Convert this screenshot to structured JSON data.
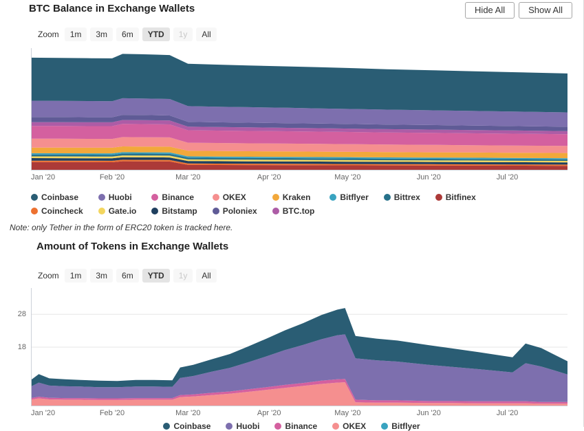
{
  "controls": {
    "hide_all": "Hide All",
    "show_all": "Show All",
    "zoom_label": "Zoom",
    "ranges": [
      "1m",
      "3m",
      "6m",
      "YTD",
      "1y",
      "All"
    ],
    "selected_range": "YTD"
  },
  "note": "Note: only Tether in the form of ERC20 token is tracked here.",
  "chart_data": [
    {
      "type": "area",
      "stacked": true,
      "title": "BTC Balance in Exchange Wallets",
      "xlabel": "",
      "ylabel": "",
      "ylim": [
        0,
        2800
      ],
      "yticks": [],
      "grid": false,
      "legend_position": "bottom-left",
      "x": [
        "2020-01-01",
        "2020-01-12",
        "2020-01-24",
        "2020-02-01",
        "2020-02-05",
        "2020-02-12",
        "2020-02-18",
        "2020-02-23",
        "2020-03-01",
        "2020-03-12",
        "2020-03-24",
        "2020-04-08",
        "2020-04-20",
        "2020-05-04",
        "2020-05-16",
        "2020-06-01",
        "2020-06-16",
        "2020-07-03",
        "2020-07-24"
      ],
      "x_ticks": [
        {
          "label": "Jan '20",
          "date": "2020-01-01"
        },
        {
          "label": "Feb '20",
          "date": "2020-02-01"
        },
        {
          "label": "Mar '20",
          "date": "2020-03-01"
        },
        {
          "label": "Apr '20",
          "date": "2020-04-01"
        },
        {
          "label": "May '20",
          "date": "2020-05-01"
        },
        {
          "label": "Jun '20",
          "date": "2020-06-01"
        },
        {
          "label": "Jul '20",
          "date": "2020-07-01"
        }
      ],
      "series": [
        {
          "name": "Bitfinex",
          "color": "#ac3a38",
          "values": [
            192,
            191,
            190,
            189,
            211,
            209,
            208,
            206,
            128,
            126,
            124,
            122,
            120,
            118,
            116,
            114,
            112,
            110,
            107
          ]
        },
        {
          "name": "Coincheck",
          "color": "#ed7130",
          "values": [
            33,
            33,
            33,
            33,
            34,
            34,
            34,
            34,
            32,
            32,
            31,
            31,
            31,
            30,
            30,
            30,
            30,
            29,
            29
          ]
        },
        {
          "name": "Bitstamp",
          "color": "#1f3f5f",
          "values": [
            58,
            58,
            57,
            57,
            58,
            58,
            58,
            58,
            55,
            54,
            54,
            53,
            53,
            52,
            52,
            51,
            51,
            50,
            50
          ]
        },
        {
          "name": "Gate.io",
          "color": "#f3d65f",
          "values": [
            40,
            40,
            40,
            40,
            41,
            41,
            41,
            41,
            39,
            38,
            38,
            38,
            37,
            37,
            36,
            36,
            36,
            35,
            35
          ]
        },
        {
          "name": "Bittrex",
          "color": "#26718a",
          "values": [
            42,
            42,
            42,
            42,
            43,
            43,
            43,
            43,
            40,
            40,
            39,
            39,
            38,
            38,
            37,
            37,
            36,
            36,
            35
          ]
        },
        {
          "name": "Bitflyer",
          "color": "#39a3c0",
          "values": [
            30,
            30,
            30,
            30,
            31,
            31,
            31,
            31,
            29,
            29,
            29,
            28,
            28,
            28,
            28,
            27,
            27,
            27,
            26
          ]
        },
        {
          "name": "Kraken",
          "color": "#f2a83b",
          "values": [
            128,
            128,
            128,
            129,
            132,
            132,
            132,
            131,
            128,
            127,
            126,
            125,
            124,
            123,
            122,
            121,
            120,
            119,
            118
          ]
        },
        {
          "name": "OKEX",
          "color": "#f58f8f",
          "values": [
            205,
            204,
            203,
            202,
            215,
            214,
            213,
            212,
            185,
            183,
            181,
            179,
            177,
            175,
            172,
            170,
            167,
            165,
            162
          ]
        },
        {
          "name": "Binance",
          "color": "#d4609f",
          "values": [
            290,
            291,
            292,
            293,
            300,
            300,
            299,
            298,
            285,
            284,
            283,
            281,
            280,
            278,
            276,
            274,
            272,
            270,
            267
          ]
        },
        {
          "name": "BTC.top",
          "color": "#ad5ca6",
          "values": [
            88,
            88,
            87,
            87,
            90,
            90,
            89,
            89,
            82,
            81,
            81,
            80,
            79,
            78,
            77,
            76,
            75,
            74,
            72
          ]
        },
        {
          "name": "Poloniex",
          "color": "#5f5b96",
          "values": [
            118,
            117,
            116,
            115,
            118,
            118,
            117,
            116,
            110,
            109,
            108,
            107,
            106,
            105,
            104,
            103,
            102,
            101,
            99
          ]
        },
        {
          "name": "Huobi",
          "color": "#7d6fae",
          "values": [
            372,
            371,
            370,
            369,
            380,
            379,
            378,
            377,
            360,
            357,
            354,
            351,
            348,
            345,
            342,
            339,
            336,
            333,
            329
          ]
        },
        {
          "name": "Coinbase",
          "color": "#2a5d74",
          "values": [
            985,
            983,
            981,
            979,
            1015,
            1011,
            1008,
            1005,
            968,
            962,
            956,
            948,
            941,
            933,
            925,
            917,
            909,
            901,
            890
          ]
        }
      ],
      "legend": [
        {
          "label": "Coinbase",
          "color": "#2a5d74"
        },
        {
          "label": "Huobi",
          "color": "#7d6fae"
        },
        {
          "label": "Binance",
          "color": "#d4609f"
        },
        {
          "label": "OKEX",
          "color": "#f58f8f"
        },
        {
          "label": "Kraken",
          "color": "#f2a83b"
        },
        {
          "label": "Bitflyer",
          "color": "#39a3c0"
        },
        {
          "label": "Bittrex",
          "color": "#26718a"
        },
        {
          "label": "Bitfinex",
          "color": "#ac3a38"
        },
        {
          "label": "Coincheck",
          "color": "#ed7130"
        },
        {
          "label": "Gate.io",
          "color": "#f3d65f"
        },
        {
          "label": "Bitstamp",
          "color": "#1f3f5f"
        },
        {
          "label": "Poloniex",
          "color": "#5f5b96"
        },
        {
          "label": "BTC.top",
          "color": "#ad5ca6"
        }
      ]
    },
    {
      "type": "area",
      "stacked": true,
      "title": "Amount of Tokens in Exchange Wallets",
      "xlabel": "",
      "ylabel": "",
      "ylim": [
        0,
        36
      ],
      "yticks": [
        18,
        28
      ],
      "grid": true,
      "legend_position": "bottom-center",
      "x": [
        "2020-01-01",
        "2020-01-04",
        "2020-01-08",
        "2020-01-14",
        "2020-01-20",
        "2020-01-27",
        "2020-02-03",
        "2020-02-10",
        "2020-02-17",
        "2020-02-24",
        "2020-02-27",
        "2020-03-03",
        "2020-03-10",
        "2020-03-17",
        "2020-03-24",
        "2020-03-31",
        "2020-04-07",
        "2020-04-14",
        "2020-04-21",
        "2020-04-27",
        "2020-04-30",
        "2020-05-04",
        "2020-05-12",
        "2020-05-20",
        "2020-06-01",
        "2020-06-10",
        "2020-06-20",
        "2020-06-28",
        "2020-07-03",
        "2020-07-08",
        "2020-07-14",
        "2020-07-19",
        "2020-07-24"
      ],
      "x_ticks": [
        {
          "label": "Jan '20",
          "date": "2020-01-01"
        },
        {
          "label": "Feb '20",
          "date": "2020-02-01"
        },
        {
          "label": "Mar '20",
          "date": "2020-03-01"
        },
        {
          "label": "Apr '20",
          "date": "2020-04-01"
        },
        {
          "label": "May '20",
          "date": "2020-05-01"
        },
        {
          "label": "Jun '20",
          "date": "2020-06-01"
        },
        {
          "label": "Jul '20",
          "date": "2020-07-01"
        }
      ],
      "series": [
        {
          "name": "Bitflyer",
          "color": "#39a3c0",
          "values": [
            0.2,
            0.2,
            0.2,
            0.2,
            0.2,
            0.2,
            0.2,
            0.2,
            0.2,
            0.2,
            0.2,
            0.2,
            0.2,
            0.2,
            0.2,
            0.2,
            0.2,
            0.2,
            0.2,
            0.2,
            0.2,
            0.2,
            0.2,
            0.2,
            0.2,
            0.2,
            0.2,
            0.2,
            0.2,
            0.2,
            0.2,
            0.2,
            0.2
          ]
        },
        {
          "name": "OKEX",
          "color": "#f58f8f",
          "values": [
            1.8,
            2.2,
            1.9,
            1.8,
            1.8,
            1.7,
            1.7,
            1.8,
            1.8,
            1.8,
            2.6,
            2.8,
            3.2,
            3.6,
            4.2,
            4.8,
            5.4,
            6.0,
            6.6,
            7.0,
            7.1,
            1.0,
            0.9,
            0.9,
            0.8,
            0.8,
            0.7,
            0.7,
            0.7,
            0.7,
            0.6,
            0.6,
            0.6
          ]
        },
        {
          "name": "Binance",
          "color": "#d4609f",
          "values": [
            0.5,
            0.5,
            0.5,
            0.5,
            0.5,
            0.5,
            0.5,
            0.5,
            0.5,
            0.5,
            0.6,
            0.6,
            0.7,
            0.7,
            0.8,
            0.8,
            0.9,
            0.9,
            1.0,
            1.0,
            1.0,
            0.8,
            0.7,
            0.7,
            0.6,
            0.6,
            0.6,
            0.6,
            0.6,
            0.6,
            0.5,
            0.5,
            0.5
          ]
        },
        {
          "name": "Huobi",
          "color": "#7d6fae",
          "values": [
            3.5,
            4.3,
            3.7,
            3.6,
            3.5,
            3.4,
            3.4,
            3.5,
            3.5,
            3.4,
            5.2,
            5.6,
            6.4,
            7.2,
            8.2,
            9.4,
            10.6,
            11.6,
            12.6,
            13.4,
            13.6,
            12.6,
            12.2,
            11.8,
            11.0,
            10.4,
            9.8,
            9.2,
            8.8,
            11.6,
            10.8,
            9.6,
            8.4
          ]
        },
        {
          "name": "Coinbase",
          "color": "#2a5d74",
          "values": [
            2.0,
            2.6,
            2.2,
            2.1,
            2.0,
            2.0,
            1.9,
            2.0,
            2.0,
            2.0,
            3.2,
            3.4,
            3.8,
            4.2,
            4.8,
            5.4,
            6.0,
            6.6,
            7.4,
            7.8,
            8.0,
            6.8,
            6.6,
            6.4,
            6.0,
            5.6,
            5.2,
            4.8,
            4.6,
            6.0,
            5.6,
            4.8,
            4.0
          ]
        }
      ],
      "legend": [
        {
          "label": "Coinbase",
          "color": "#2a5d74"
        },
        {
          "label": "Huobi",
          "color": "#7d6fae"
        },
        {
          "label": "Binance",
          "color": "#d4609f"
        },
        {
          "label": "OKEX",
          "color": "#f58f8f"
        },
        {
          "label": "Bitflyer",
          "color": "#39a3c0"
        }
      ]
    }
  ]
}
